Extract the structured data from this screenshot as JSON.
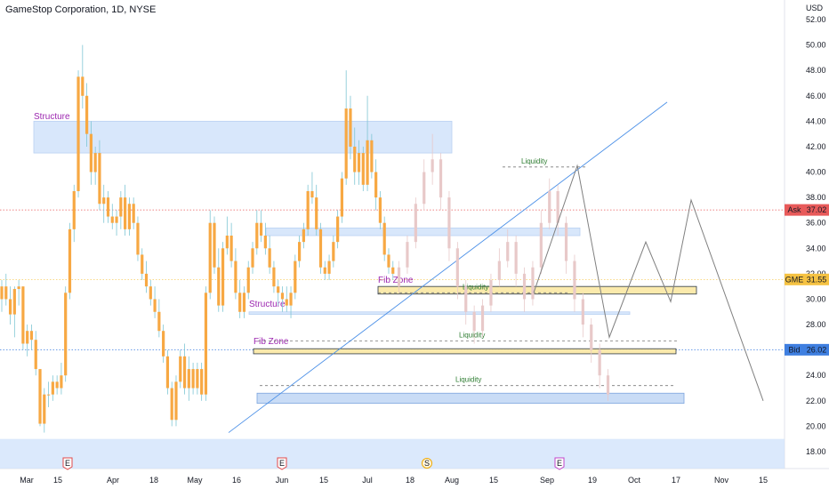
{
  "header": {
    "title": "GameStop Corporation, 1D, NYSE"
  },
  "price_axis": {
    "currency": "USD"
  },
  "colors": {
    "candle_up": "#f7a843",
    "candle_down": "#f7a843",
    "candle_projection": "#e8c9c9",
    "zone_blue": "#cfe2fb",
    "zone_blue_stroke": "#5d8fd6",
    "zone_yellow": "#fbe9a8",
    "zone_yellow_stroke": "#1f2d3d",
    "trendline": "#4a8fe7",
    "projection_line": "#808080",
    "ask": "#e85a5a",
    "bid": "#3f7fe0",
    "gme": "#f5c242",
    "structure_text": "#9c27b0",
    "liquidity_text": "#2e7d32"
  },
  "chart_data": {
    "type": "candlestick",
    "title": "GameStop Corporation, 1D, NYSE",
    "ylim": [
      17,
      53.5
    ],
    "y_ticks": [
      18,
      20,
      22,
      24,
      26,
      28,
      30,
      32,
      34,
      36,
      38,
      40,
      42,
      44,
      46,
      48,
      50,
      52
    ],
    "x_ticks": [
      "Mar",
      "15",
      "Apr",
      "18",
      "May",
      "16",
      "Jun",
      "15",
      "Jul",
      "18",
      "Aug",
      "15",
      "Sep",
      "19",
      "Oct",
      "17",
      "Nov",
      "15"
    ],
    "price_labels": [
      {
        "name": "Ask",
        "value": 37.02
      },
      {
        "name": "GME",
        "value": 31.55
      },
      {
        "name": "Bid",
        "value": 26.02
      }
    ],
    "candles": [
      [
        30,
        31.5,
        29,
        31
      ],
      [
        31,
        32,
        29.5,
        30
      ],
      [
        30,
        31,
        28,
        28.8
      ],
      [
        28.8,
        31,
        27,
        30.8
      ],
      [
        30.8,
        31.5,
        29.5,
        31
      ],
      [
        31,
        31,
        26,
        26.5
      ],
      [
        26.5,
        28,
        25.5,
        27.5
      ],
      [
        27.5,
        28,
        26,
        26.8
      ],
      [
        26.8,
        27.5,
        24,
        24.5
      ],
      [
        24.5,
        24.5,
        20,
        20.2
      ],
      [
        20.2,
        23,
        19.5,
        22.5
      ],
      [
        22.5,
        23.5,
        21.5,
        22.5
      ],
      [
        22.5,
        24,
        22,
        23.5
      ],
      [
        23.5,
        24,
        22.5,
        23
      ],
      [
        23,
        25,
        22.5,
        24
      ],
      [
        24,
        31,
        23.5,
        30.5
      ],
      [
        30.5,
        36,
        30,
        35.5
      ],
      [
        35.5,
        39,
        34.5,
        38.5
      ],
      [
        38.5,
        48,
        38,
        47.5
      ],
      [
        47.5,
        50,
        45,
        46
      ],
      [
        46,
        47,
        42,
        43
      ],
      [
        43,
        44,
        39,
        40
      ],
      [
        40,
        42,
        39,
        41.5
      ],
      [
        41.5,
        42.5,
        37,
        37.5
      ],
      [
        37.5,
        39,
        36,
        38
      ],
      [
        38,
        38.5,
        36,
        36.5
      ],
      [
        36.5,
        37.5,
        35.5,
        36
      ],
      [
        36,
        37,
        35,
        36.5
      ],
      [
        36.5,
        38.5,
        35.5,
        38
      ],
      [
        38,
        39,
        35,
        35.5
      ],
      [
        35.5,
        38,
        35,
        37.5
      ],
      [
        37.5,
        38,
        35.5,
        36
      ],
      [
        36,
        36.5,
        33,
        33.5
      ],
      [
        33.5,
        34,
        31.5,
        32
      ],
      [
        32,
        33,
        30.5,
        31
      ],
      [
        31,
        31.5,
        29.5,
        30
      ],
      [
        30,
        31,
        28.5,
        29
      ],
      [
        29,
        30,
        27,
        27.5
      ],
      [
        27.5,
        28,
        25,
        25.5
      ],
      [
        25.5,
        26,
        22.5,
        23
      ],
      [
        23,
        23.5,
        20,
        20.5
      ],
      [
        20.5,
        24,
        20,
        23.5
      ],
      [
        23.5,
        26,
        23,
        25.5
      ],
      [
        25.5,
        26.5,
        22.5,
        23
      ],
      [
        23,
        25.5,
        22,
        24.5
      ],
      [
        24.5,
        25,
        22.5,
        23
      ],
      [
        23,
        25,
        22.5,
        24.5
      ],
      [
        24.5,
        25,
        22,
        22.5
      ],
      [
        22.5,
        31,
        22,
        30.5
      ],
      [
        30.5,
        37,
        30,
        36
      ],
      [
        36,
        36.5,
        32,
        32.5
      ],
      [
        32.5,
        34,
        29,
        29.5
      ],
      [
        29.5,
        34.5,
        29,
        34
      ],
      [
        34,
        36.5,
        33.5,
        35
      ],
      [
        35,
        36,
        32.5,
        33
      ],
      [
        33,
        34,
        30,
        30.5
      ],
      [
        30.5,
        31.5,
        28.5,
        29
      ],
      [
        29,
        31,
        28.5,
        30.5
      ],
      [
        30.5,
        33,
        30,
        32.5
      ],
      [
        32.5,
        34.5,
        32,
        34
      ],
      [
        34,
        37,
        33.5,
        36
      ],
      [
        36,
        37,
        34.5,
        35
      ],
      [
        35,
        36,
        33.5,
        34
      ],
      [
        34,
        35,
        32,
        32.5
      ],
      [
        32.5,
        33,
        30.5,
        31
      ],
      [
        31,
        31.5,
        29.5,
        30.5
      ],
      [
        30.5,
        31,
        29,
        30
      ],
      [
        30,
        31,
        29,
        29.5
      ],
      [
        29.5,
        31,
        28.5,
        30.5
      ],
      [
        30.5,
        33.5,
        30,
        33
      ],
      [
        33,
        35,
        32.5,
        34.5
      ],
      [
        34.5,
        36,
        34,
        35.5
      ],
      [
        35.5,
        39,
        35,
        38.5
      ],
      [
        38.5,
        40,
        37.5,
        38
      ],
      [
        38,
        39,
        35,
        35.5
      ],
      [
        35.5,
        36,
        32,
        32.5
      ],
      [
        32.5,
        33,
        31.5,
        32
      ],
      [
        32,
        33.5,
        31.5,
        33
      ],
      [
        33,
        35,
        32.5,
        34.5
      ],
      [
        34.5,
        37,
        34,
        36.5
      ],
      [
        36.5,
        40,
        36,
        39.5
      ],
      [
        39.5,
        48,
        39,
        45
      ],
      [
        45,
        46,
        41,
        42
      ],
      [
        42,
        43.5,
        39,
        40
      ],
      [
        40,
        42.5,
        39,
        41.5
      ],
      [
        41.5,
        42,
        38.5,
        39
      ],
      [
        39,
        46,
        38.5,
        42.5
      ],
      [
        42.5,
        43,
        39.5,
        40
      ],
      [
        40,
        41,
        37,
        38
      ],
      [
        38,
        38.5,
        35.5,
        36
      ],
      [
        36,
        36.5,
        33,
        33.5
      ],
      [
        33.5,
        34,
        32,
        32.5
      ],
      [
        32.5,
        33,
        31.5,
        32
      ]
    ],
    "projection_candles": [
      [
        31,
        33,
        30.5,
        32.5
      ],
      [
        32.5,
        35,
        32,
        34.5
      ],
      [
        34.5,
        38,
        34,
        37.5
      ],
      [
        37.5,
        41,
        37,
        40
      ],
      [
        40,
        43,
        39,
        41
      ],
      [
        41,
        41.5,
        37,
        38
      ],
      [
        38,
        38.5,
        33,
        34
      ],
      [
        34,
        34.5,
        30,
        31
      ],
      [
        31,
        31.5,
        28,
        29
      ],
      [
        29,
        29.5,
        26.5,
        27.5
      ],
      [
        27.5,
        30,
        27,
        29.5
      ],
      [
        29.5,
        32,
        29,
        31.5
      ],
      [
        31.5,
        34,
        31,
        33
      ],
      [
        33,
        35.5,
        32.5,
        34.5
      ],
      [
        34.5,
        35,
        31,
        32
      ],
      [
        32,
        32.5,
        29,
        30
      ],
      [
        30,
        33,
        29.5,
        32.5
      ],
      [
        32.5,
        37,
        32,
        36
      ],
      [
        36,
        39.5,
        35.5,
        38.5
      ],
      [
        38.5,
        39,
        35,
        36
      ],
      [
        36,
        36.5,
        32,
        33
      ],
      [
        33,
        33.5,
        29,
        30
      ],
      [
        30,
        30.5,
        27,
        28
      ],
      [
        28,
        28.5,
        25,
        26
      ],
      [
        26,
        26.5,
        23,
        24
      ],
      [
        24,
        24.5,
        22,
        22.5
      ]
    ],
    "zones": [
      {
        "kind": "structure",
        "label": "Structure",
        "top": 44,
        "bottom": 41.5
      },
      {
        "kind": "structure-small",
        "label": "",
        "top": 35.6,
        "bottom": 35
      },
      {
        "kind": "fib",
        "label": "Fib Zone",
        "top": 31,
        "bottom": 30.4
      },
      {
        "kind": "structure",
        "label": "Structure",
        "top": 29,
        "bottom": 28.8
      },
      {
        "kind": "fib",
        "label": "Fib Zone",
        "top": 26.1,
        "bottom": 25.7
      },
      {
        "kind": "fib-blue",
        "label": "",
        "top": 22.6,
        "bottom": 21.8
      }
    ],
    "liquidity": [
      {
        "label": "Liquidity",
        "value": 40.4
      },
      {
        "label": "Liquidity",
        "value": 30.5
      },
      {
        "label": "Liquidity",
        "value": 26.7
      },
      {
        "label": "Liquidity",
        "value": 23.2
      }
    ],
    "events": [
      {
        "label": "E",
        "kind": "earnings"
      },
      {
        "label": "E",
        "kind": "earnings"
      },
      {
        "label": "S",
        "kind": "split"
      },
      {
        "label": "E",
        "kind": "earnings-future"
      }
    ]
  }
}
